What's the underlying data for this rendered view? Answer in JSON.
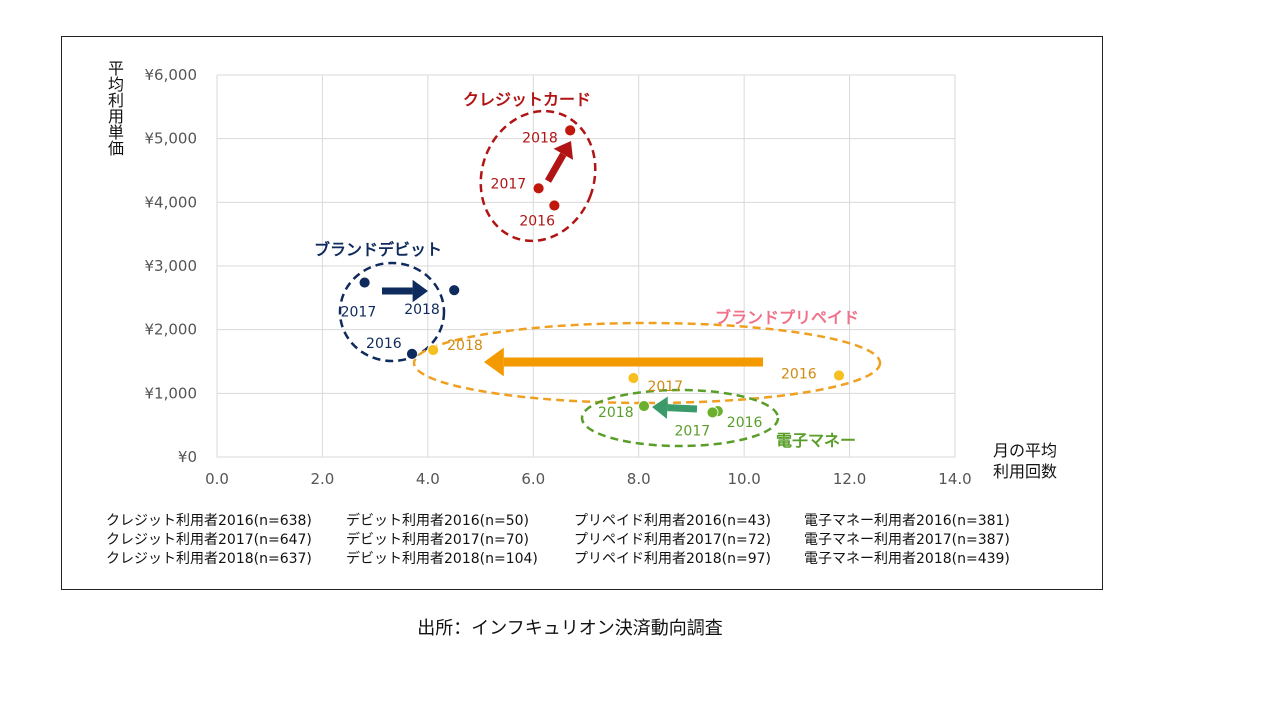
{
  "chart_data": {
    "type": "scatter",
    "title": "",
    "ylabel": "平均利用単価",
    "xlabel": "月の平均\n利用回数",
    "xlim": [
      0,
      14
    ],
    "ylim": [
      0,
      6000
    ],
    "x_ticks": [
      "0.0",
      "2.0",
      "4.0",
      "6.0",
      "8.0",
      "10.0",
      "12.0",
      "14.0"
    ],
    "y_ticks": [
      "¥0",
      "¥1,000",
      "¥2,000",
      "¥3,000",
      "¥4,000",
      "¥5,000",
      "¥6,000"
    ],
    "grid": true,
    "series": [
      {
        "name": "クレジットカード",
        "color": "#b01414",
        "point_fill": "#c0180c",
        "points": [
          {
            "label": "2016",
            "x": 6.4,
            "y": 3950
          },
          {
            "label": "2017",
            "x": 6.1,
            "y": 4220
          },
          {
            "label": "2018",
            "x": 6.7,
            "y": 5130
          }
        ]
      },
      {
        "name": "ブランドデビット",
        "color": "#0f2a5c",
        "point_fill": "#0f2a5c",
        "points": [
          {
            "label": "2016",
            "x": 3.7,
            "y": 1620
          },
          {
            "label": "2017",
            "x": 2.8,
            "y": 2740
          },
          {
            "label": "2018",
            "x": 4.5,
            "y": 2620
          }
        ]
      },
      {
        "name": "ブランドプリペイド",
        "color": "#f0728a",
        "point_fill": "#f5c020",
        "points": [
          {
            "label": "2016",
            "x": 11.8,
            "y": 1280
          },
          {
            "label": "2017",
            "x": 7.9,
            "y": 1240
          },
          {
            "label": "2018",
            "x": 4.1,
            "y": 1680
          }
        ]
      },
      {
        "name": "電子マネー",
        "color": "#5a9e2a",
        "point_fill": "#6ab02c",
        "points": [
          {
            "label": "2016",
            "x": 9.5,
            "y": 720
          },
          {
            "label": "2017",
            "x": 9.4,
            "y": 700
          },
          {
            "label": "2018",
            "x": 8.1,
            "y": 800
          }
        ]
      }
    ]
  },
  "footnotes": [
    [
      "クレジット利用者2016(n=638)",
      "クレジット利用者2017(n=647)",
      "クレジット利用者2018(n=637)"
    ],
    [
      "デビット利用者2016(n=50)",
      "デビット利用者2017(n=70)",
      "デビット利用者2018(n=104)"
    ],
    [
      "プリペイド利用者2016(n=43)",
      "プリペイド利用者2017(n=72)",
      "プリペイド利用者2018(n=97)"
    ],
    [
      "電子マネー利用者2016(n=381)",
      "電子マネー利用者2017(n=387)",
      "電子マネー利用者2018(n=439)"
    ]
  ],
  "source": "出所：インフキュリオン決済動向調査",
  "colors": {
    "credit": "#b01414",
    "debit": "#0f2a5c",
    "prepaid_label": "#f0728a",
    "prepaid_ellipse": "#f0a020",
    "prepaid_text": "#d08a10",
    "emoney": "#5a9e2a",
    "emoney_arrow": "#3a9a6a",
    "grid": "#d9d9d9",
    "axis_text": "#555555"
  }
}
